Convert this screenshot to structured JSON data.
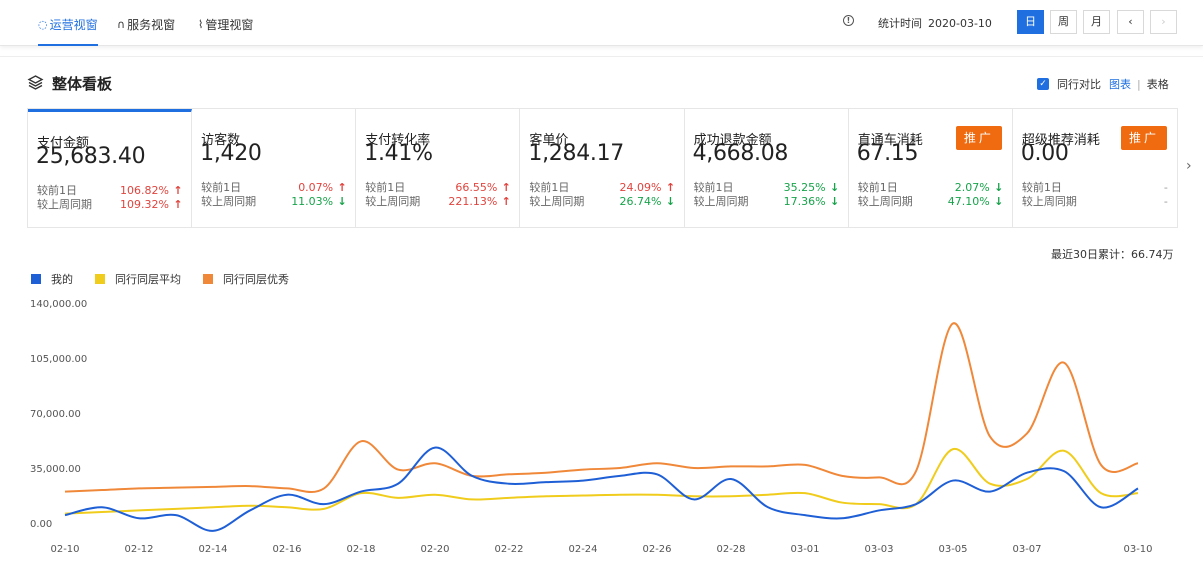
{
  "nav": {
    "tabs": [
      {
        "label": "运营视窗",
        "icon": "headset-icon",
        "active": true
      },
      {
        "label": "服务视窗",
        "icon": "headphones-icon",
        "active": false
      },
      {
        "label": "管理视窗",
        "icon": "plug-icon",
        "active": false
      }
    ],
    "stat_time_label": "统计时间",
    "stat_date": "2020-03-10",
    "periods": [
      "日",
      "周",
      "月"
    ],
    "prev": "‹",
    "next": "›"
  },
  "section": {
    "title": "整体看板",
    "compare_label": "同行对比",
    "view_chart": "图表",
    "view_table": "表格"
  },
  "metrics": [
    {
      "name": "支付金额",
      "value": "25,683.40",
      "r1_label": "较前1日",
      "r1_pct": "106.82%",
      "r1_dir": "up",
      "r2_label": "较上周同期",
      "r2_pct": "109.32%",
      "r2_dir": "up"
    },
    {
      "name": "访客数",
      "value": "1,420",
      "r1_label": "较前1日",
      "r1_pct": "0.07%",
      "r1_dir": "up",
      "r2_label": "较上周同期",
      "r2_pct": "11.03%",
      "r2_dir": "down"
    },
    {
      "name": "支付转化率",
      "value": "1.41%",
      "r1_label": "较前1日",
      "r1_pct": "66.55%",
      "r1_dir": "up",
      "r2_label": "较上周同期",
      "r2_pct": "221.13%",
      "r2_dir": "up"
    },
    {
      "name": "客单价",
      "value": "1,284.17",
      "r1_label": "较前1日",
      "r1_pct": "24.09%",
      "r1_dir": "up",
      "r2_label": "较上周同期",
      "r2_pct": "26.74%",
      "r2_dir": "down"
    },
    {
      "name": "成功退款金额",
      "value": "4,668.08",
      "r1_label": "较前1日",
      "r1_pct": "35.25%",
      "r1_dir": "down",
      "r2_label": "较上周同期",
      "r2_pct": "17.36%",
      "r2_dir": "down"
    },
    {
      "name": "直通车消耗",
      "value": "67.15",
      "r1_label": "较前1日",
      "r1_pct": "2.07%",
      "r1_dir": "down",
      "r2_label": "较上周同期",
      "r2_pct": "47.10%",
      "r2_dir": "down",
      "button": "推广"
    },
    {
      "name": "超级推荐消耗",
      "value": "0.00",
      "r1_label": "较前1日",
      "r1_pct": "-",
      "r1_dir": "none",
      "r2_label": "较上周同期",
      "r2_pct": "-",
      "r2_dir": "none",
      "button": "推广"
    }
  ],
  "summary": "最近30日累计：66.74万",
  "colors": {
    "accent": "#1f6fe0",
    "mine": "#1f5fd6",
    "avg": "#f0cc1c",
    "best": "#f0883a",
    "promo": "#f06a0f"
  },
  "chart_data": {
    "type": "line",
    "legend_position": "top-left",
    "grid": false,
    "ylim": [
      0,
      140000
    ],
    "yticks": [
      "0.00",
      "35,000.00",
      "70,000.00",
      "105,000.00",
      "140,000.00"
    ],
    "x": [
      "02-10",
      "02-11",
      "02-12",
      "02-13",
      "02-14",
      "02-15",
      "02-16",
      "02-17",
      "02-18",
      "02-19",
      "02-20",
      "02-21",
      "02-22",
      "02-23",
      "02-24",
      "02-25",
      "02-26",
      "02-27",
      "02-28",
      "02-29",
      "03-01",
      "03-02",
      "03-03",
      "03-04",
      "03-05",
      "03-06",
      "03-07",
      "03-08",
      "03-09",
      "03-10"
    ],
    "xticks": [
      "02-10",
      "02-12",
      "02-14",
      "02-16",
      "02-18",
      "02-20",
      "02-22",
      "02-24",
      "02-26",
      "02-28",
      "03-01",
      "03-03",
      "03-05",
      "03-07",
      "03-10"
    ],
    "series": [
      {
        "name": "我的",
        "color": "#1f5fd6",
        "values": [
          5000,
          10000,
          3000,
          5000,
          -5000,
          8000,
          18000,
          12000,
          20000,
          25000,
          48000,
          30000,
          25000,
          26000,
          27000,
          30000,
          31000,
          15000,
          28000,
          10000,
          5000,
          3000,
          8000,
          12000,
          27000,
          20000,
          32000,
          33000,
          10000,
          22000
        ]
      },
      {
        "name": "同行同层平均",
        "color": "#f0cc1c",
        "values": [
          6000,
          7000,
          8000,
          9000,
          10000,
          11000,
          10000,
          9000,
          19000,
          16000,
          18000,
          15000,
          16000,
          17000,
          17500,
          18000,
          18000,
          17000,
          17000,
          18000,
          19000,
          13000,
          12000,
          12000,
          47000,
          25000,
          28000,
          46000,
          19000,
          19000
        ]
      },
      {
        "name": "同行同层优秀",
        "color": "#f0883a",
        "values": [
          20000,
          21000,
          22000,
          22500,
          23000,
          23500,
          22000,
          22000,
          52000,
          34000,
          38000,
          30000,
          31000,
          32000,
          34000,
          35000,
          38000,
          35000,
          36000,
          36000,
          37000,
          30000,
          29000,
          33000,
          127000,
          55000,
          57000,
          102000,
          37000,
          38000
        ]
      }
    ]
  }
}
